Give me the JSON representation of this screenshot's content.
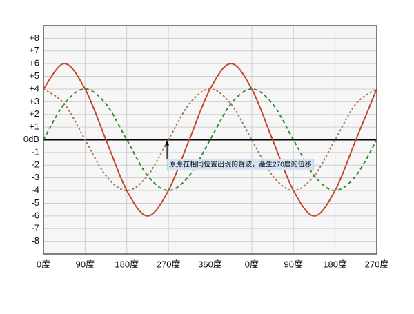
{
  "chart_data": {
    "type": "line",
    "annotation": "原應在相同位置出現的聲波，產生270度的位移",
    "x": [
      0,
      45,
      90,
      135,
      180,
      225,
      270,
      315,
      360,
      405,
      450,
      495,
      540,
      585,
      630,
      675,
      720
    ],
    "series": [
      {
        "color": "#c2462c",
        "style": "solid",
        "values": [
          4,
          6,
          4,
          0,
          -4,
          -6,
          -4,
          0,
          4,
          6,
          4,
          0,
          -4,
          -6,
          -4,
          0,
          4
        ]
      },
      {
        "color": "#a87550",
        "style": "dotted",
        "values": [
          4,
          2.83,
          0,
          -2.83,
          -4,
          -2.83,
          0,
          2.83,
          4,
          2.83,
          0,
          -2.83,
          -4,
          -2.83,
          0,
          2.83,
          4
        ]
      },
      {
        "color": "#2e8b2e",
        "style": "dashed",
        "values": [
          0,
          2.83,
          4,
          2.83,
          0,
          -2.83,
          -4,
          -2.83,
          0,
          2.83,
          4,
          2.83,
          0,
          -2.83,
          -4,
          -2.83,
          0
        ]
      }
    ],
    "xlim": [
      0,
      720
    ],
    "xticks": [
      {
        "value": 0,
        "label": "0度"
      },
      {
        "value": 90,
        "label": "90度"
      },
      {
        "value": 180,
        "label": "180度"
      },
      {
        "value": 270,
        "label": "270度"
      },
      {
        "value": 360,
        "label": "360度"
      },
      {
        "value": 450,
        "label": "0度"
      },
      {
        "value": 540,
        "label": "90度"
      },
      {
        "value": 630,
        "label": "180度"
      },
      {
        "value": 720,
        "label": "270度"
      }
    ],
    "ylim": [
      -9,
      9
    ],
    "yticks": [
      {
        "value": 8,
        "label": "+8"
      },
      {
        "value": 7,
        "label": "+7"
      },
      {
        "value": 6,
        "label": "+6"
      },
      {
        "value": 5,
        "label": "+5"
      },
      {
        "value": 4,
        "label": "+4"
      },
      {
        "value": 3,
        "label": "+3"
      },
      {
        "value": 2,
        "label": "+2"
      },
      {
        "value": 1,
        "label": "+1"
      },
      {
        "value": 0,
        "label": "0dB"
      },
      -1,
      -2,
      -3,
      -4,
      -5,
      -6,
      -7,
      -8
    ],
    "grid": true,
    "smooth": true,
    "annotation_x": 270
  }
}
